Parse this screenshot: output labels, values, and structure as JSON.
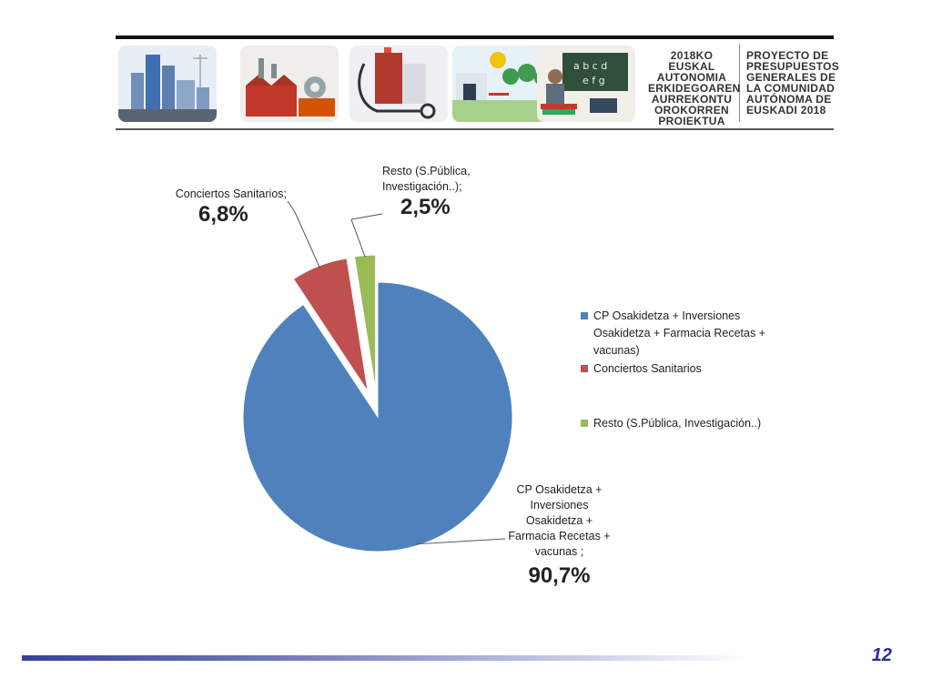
{
  "banner": {
    "title_eu": "2018KO EUSKAL\nAUTONOMIA\nERKIDEGOAREN\nAURREKONTU\nOROKORREN\nPROIEKTUA",
    "title_es": "PROYECTO DE\nPRESUPUESTOS\nGENERALES DE\nLA COMUNIDAD\nAUTÓNOMA DE\nEUSKADI 2018",
    "tile_icons": [
      "city-buildings-icon",
      "industry-factory-icon",
      "hospital-stethoscope-icon",
      "park-playground-icon",
      "school-teacher-icon"
    ]
  },
  "colors": {
    "blue": "#4f81bd",
    "red": "#c0504d",
    "green": "#9bbb59",
    "footer_dark": "#3a3f9a",
    "page_number": "#2a2f8f"
  },
  "chart_data": {
    "type": "pie",
    "title": "",
    "exploded": true,
    "slices": [
      {
        "name": "CP Osakidetza + Inversiones Osakidetza + Farmacia Recetas + vacunas)",
        "value": 90.7,
        "color": "#4f81bd"
      },
      {
        "name": "Conciertos Sanitarios",
        "value": 6.8,
        "color": "#c0504d"
      },
      {
        "name": "Resto (S.Pública, Investigación..)",
        "value": 2.5,
        "color": "#9bbb59"
      }
    ],
    "data_labels": [
      {
        "name": "CP Osakidetza +\nInversiones\nOsakidetza +\nFarmacia Recetas +\nvacunas ;",
        "pct": "90,7%"
      },
      {
        "name": "Conciertos Sanitarios;",
        "pct": "6,8%"
      },
      {
        "name": "Resto (S.Pública,\nInvestigación..);",
        "pct": "2,5%"
      }
    ],
    "legend": {
      "position": "right",
      "items": [
        "CP Osakidetza + Inversiones Osakidetza + Farmacia Recetas + vacunas)",
        "Conciertos Sanitarios",
        "Resto (S.Pública, Investigación..)"
      ]
    }
  },
  "footer": {
    "page_number": "12"
  }
}
